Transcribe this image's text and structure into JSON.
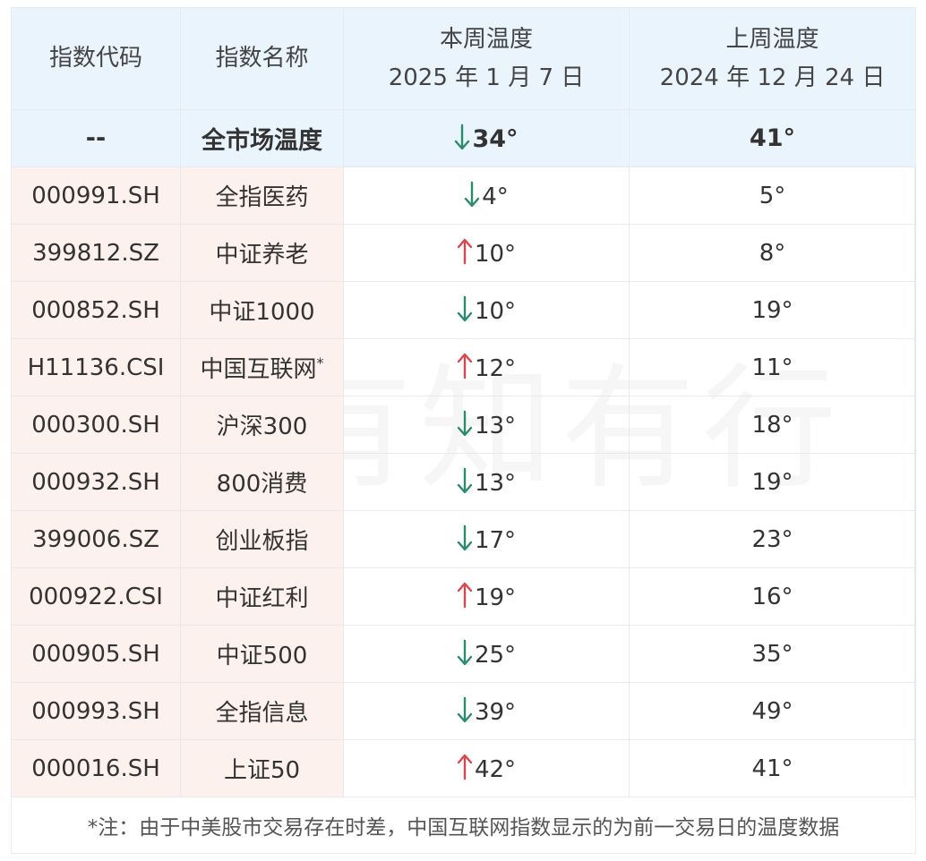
{
  "colors": {
    "header_bg": "#eaf4fd",
    "code_bg": "#fdf1ee",
    "down": "#2a8c6e",
    "up": "#d9484f"
  },
  "header": {
    "code": "指数代码",
    "name": "指数名称",
    "this_week": "本周温度",
    "this_week_date": "2025 年 1 月 7 日",
    "last_week": "上周温度",
    "last_week_date": "2024 年 12 月 24 日"
  },
  "summary": {
    "code": "--",
    "name": "全市场温度",
    "direction": "down",
    "this_week": "34°",
    "last_week": "41°"
  },
  "rows": [
    {
      "code": "000991.SH",
      "name": "全指医药",
      "name_sup": "",
      "direction": "down",
      "this_week": "4°",
      "last_week": "5°"
    },
    {
      "code": "399812.SZ",
      "name": "中证养老",
      "name_sup": "",
      "direction": "up",
      "this_week": "10°",
      "last_week": "8°"
    },
    {
      "code": "000852.SH",
      "name": "中证1000",
      "name_sup": "",
      "direction": "down",
      "this_week": "10°",
      "last_week": "19°"
    },
    {
      "code": "H11136.CSI",
      "name": "中国互联网",
      "name_sup": "*",
      "direction": "up",
      "this_week": "12°",
      "last_week": "11°"
    },
    {
      "code": "000300.SH",
      "name": "沪深300",
      "name_sup": "",
      "direction": "down",
      "this_week": "13°",
      "last_week": "18°"
    },
    {
      "code": "000932.SH",
      "name": "800消费",
      "name_sup": "",
      "direction": "down",
      "this_week": "13°",
      "last_week": "19°"
    },
    {
      "code": "399006.SZ",
      "name": "创业板指",
      "name_sup": "",
      "direction": "down",
      "this_week": "17°",
      "last_week": "23°"
    },
    {
      "code": "000922.CSI",
      "name": "中证红利",
      "name_sup": "",
      "direction": "up",
      "this_week": "19°",
      "last_week": "16°"
    },
    {
      "code": "000905.SH",
      "name": "中证500",
      "name_sup": "",
      "direction": "down",
      "this_week": "25°",
      "last_week": "35°"
    },
    {
      "code": "000993.SH",
      "name": "全指信息",
      "name_sup": "",
      "direction": "down",
      "this_week": "39°",
      "last_week": "49°"
    },
    {
      "code": "000016.SH",
      "name": "上证50",
      "name_sup": "",
      "direction": "up",
      "this_week": "42°",
      "last_week": "41°"
    }
  ],
  "footnote": "*注：由于中美股市交易存在时差，中国互联网指数显示的为前一交易日的温度数据",
  "watermark": {
    "text": "有知有行",
    "logo_icon": "leaf-logo-icon"
  }
}
